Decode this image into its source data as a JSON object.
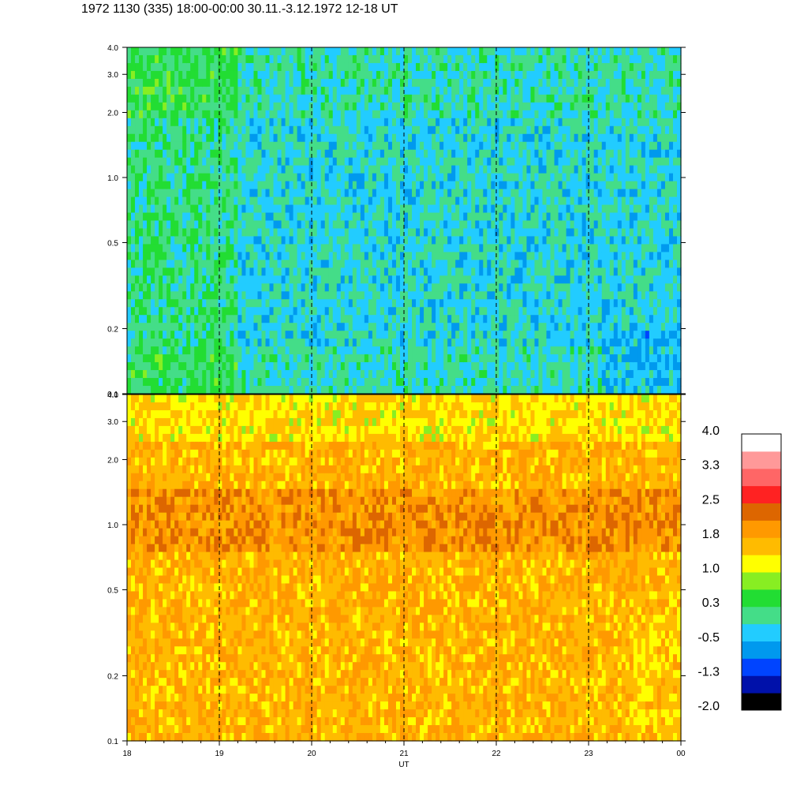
{
  "title": "1972 1130 (335) 18:00-00:00 30.11.-3.12.1972  12-18 UT",
  "chart_data": [
    {
      "type": "heatmap",
      "panel": "top",
      "y_scale": "log",
      "ylim": [
        0.1,
        4.0
      ],
      "y_ticks": [
        "0.1",
        "0.2",
        "0.5",
        "1.0",
        "2.0",
        "3.0",
        "4.0"
      ],
      "x_ticks": [
        "18",
        "19",
        "20",
        "21",
        "22",
        "23",
        "00"
      ],
      "dominant_levels": [
        "-1.3",
        "-0.5",
        "0.3"
      ]
    },
    {
      "type": "heatmap",
      "panel": "bottom",
      "y_scale": "log",
      "ylim": [
        0.1,
        4.0
      ],
      "y_ticks": [
        "0.1",
        "0.2",
        "0.5",
        "1.0",
        "2.0",
        "3.0",
        "4.0"
      ],
      "x_ticks": [
        "18",
        "19",
        "20",
        "21",
        "22",
        "23",
        "00"
      ],
      "xlabel": "UT",
      "dominant_levels": [
        "1.0",
        "1.8"
      ]
    }
  ],
  "colorbar": {
    "colors": [
      "#000000",
      "#0011aa",
      "#0044ff",
      "#0099ee",
      "#22ccff",
      "#44dd88",
      "#22dd33",
      "#88ee22",
      "#ffff00",
      "#ffbb00",
      "#ff9900",
      "#dd6600",
      "#ff2222",
      "#ff6666",
      "#ff9999",
      "#ffffff"
    ],
    "tick_labels": [
      "-2.0",
      "-1.3",
      "-0.5",
      "0.3",
      "1.0",
      "1.8",
      "2.5",
      "3.3",
      "4.0"
    ]
  }
}
